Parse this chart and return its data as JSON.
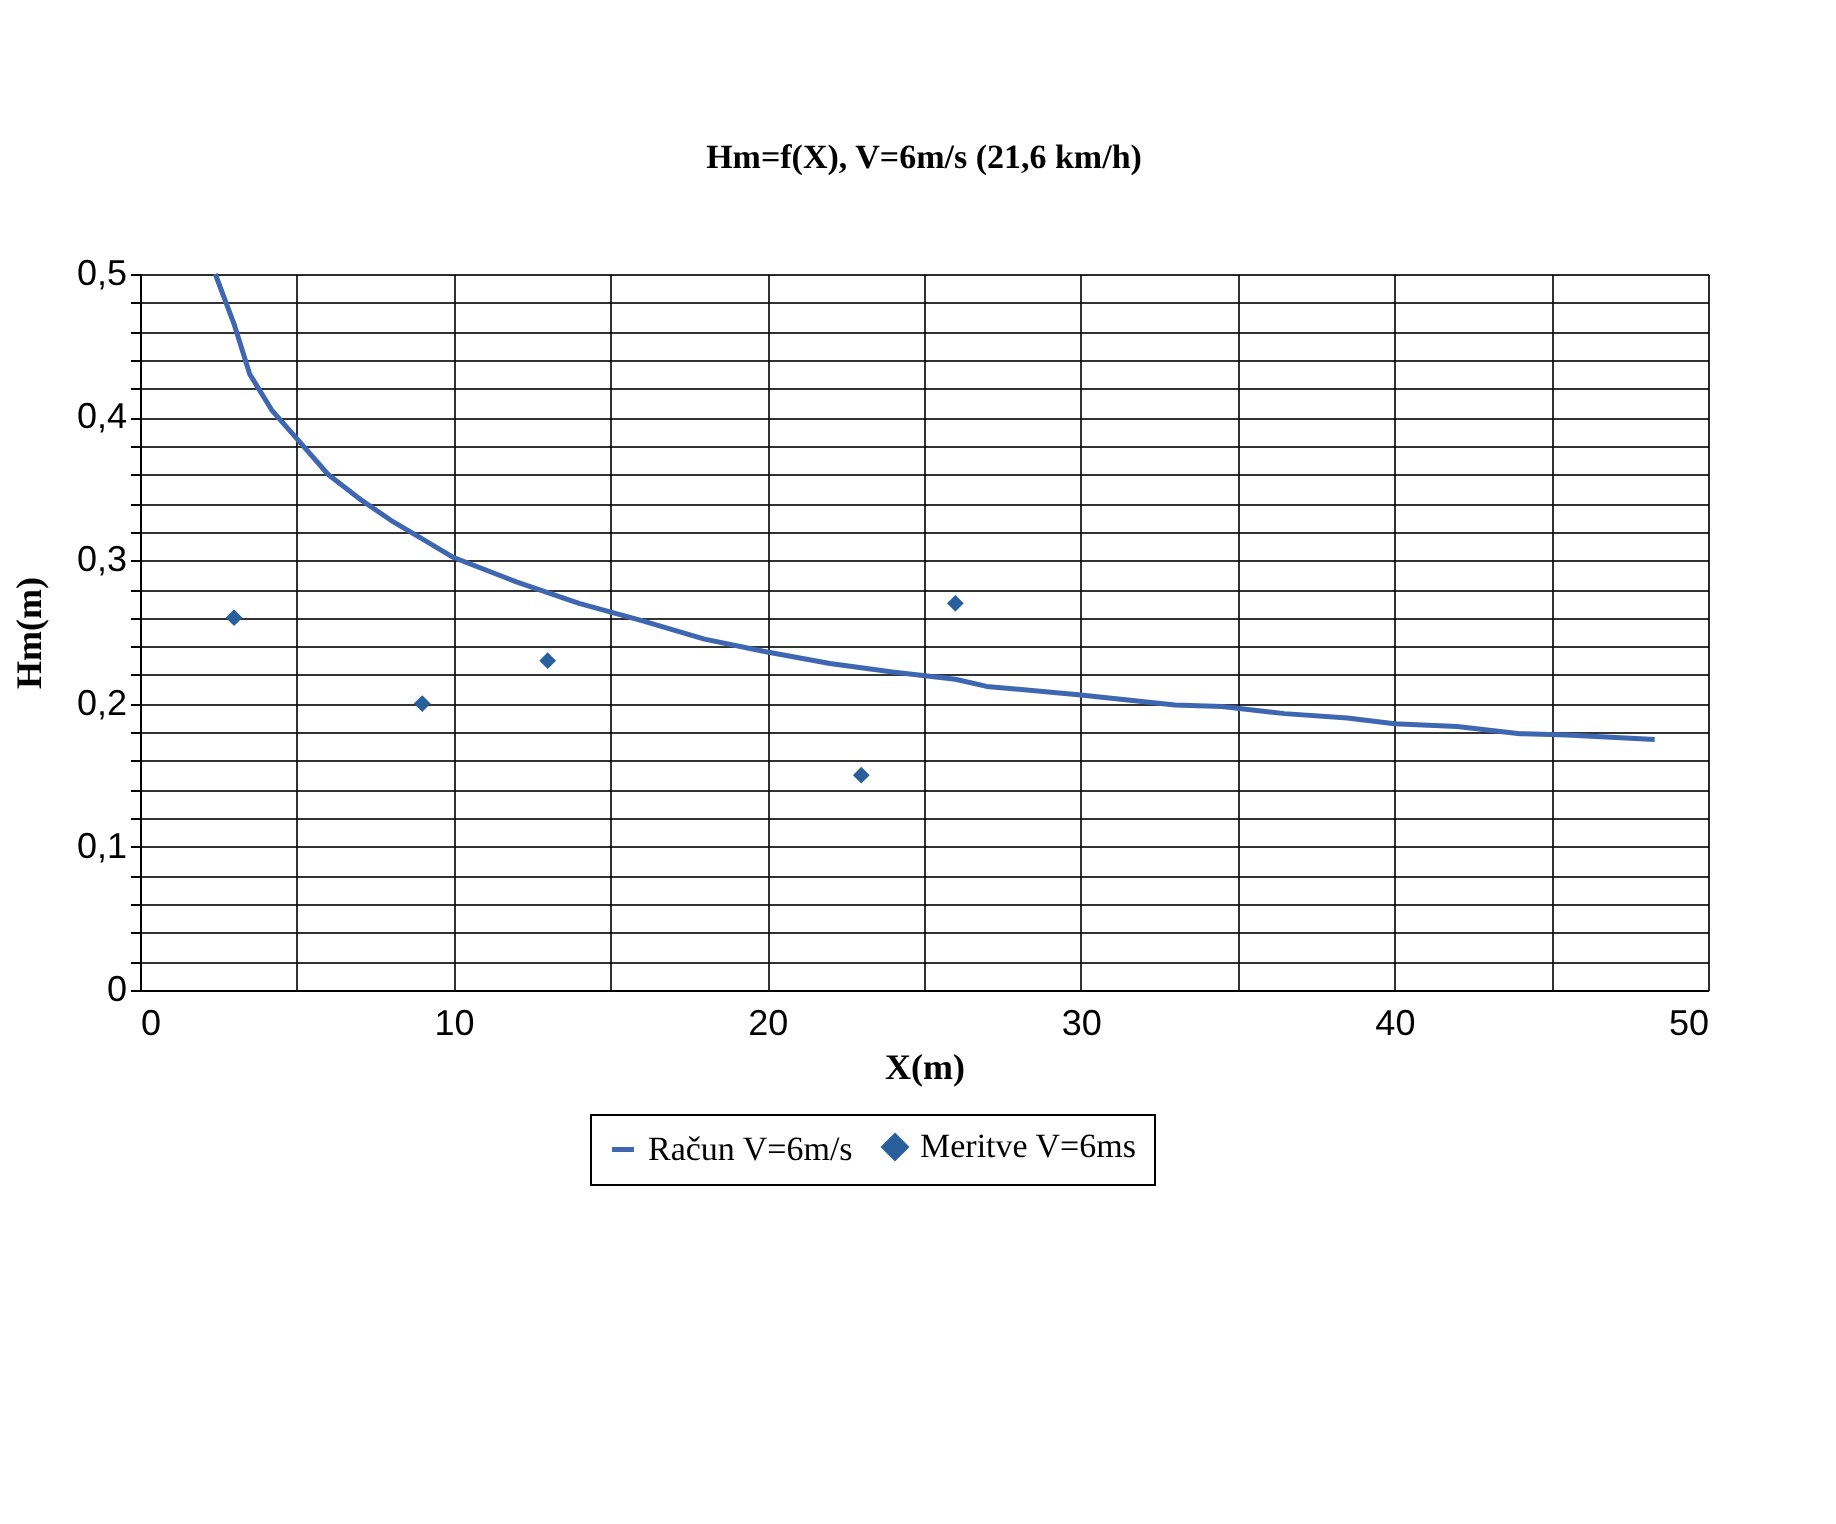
{
  "chart_data": {
    "type": "line",
    "title": "Hm=f(X), V=6m/s (21,6 km/h)",
    "xlabel": "X(m)",
    "ylabel": "Hm(m)",
    "xlim": [
      0,
      50
    ],
    "ylim": [
      0,
      0.5
    ],
    "xticks": [
      0,
      {
        "value": 5,
        "label": null
      },
      10,
      {
        "value": 15,
        "label": null
      },
      20,
      {
        "value": 25,
        "label": null
      },
      30,
      {
        "value": 35,
        "label": null
      },
      40,
      {
        "value": 45,
        "label": null
      },
      50
    ],
    "yticks": [
      {
        "value": 0,
        "label": "0"
      },
      {
        "value": 0.02,
        "label": null
      },
      {
        "value": 0.04,
        "label": null
      },
      {
        "value": 0.06,
        "label": null
      },
      {
        "value": 0.08,
        "label": null
      },
      {
        "value": 0.1,
        "label": "0,1"
      },
      {
        "value": 0.12,
        "label": null
      },
      {
        "value": 0.14,
        "label": null
      },
      {
        "value": 0.16,
        "label": null
      },
      {
        "value": 0.18,
        "label": null
      },
      {
        "value": 0.2,
        "label": "0,2"
      },
      {
        "value": 0.22,
        "label": null
      },
      {
        "value": 0.24,
        "label": null
      },
      {
        "value": 0.26,
        "label": null
      },
      {
        "value": 0.28,
        "label": null
      },
      {
        "value": 0.3,
        "label": "0,3"
      },
      {
        "value": 0.32,
        "label": null
      },
      {
        "value": 0.34,
        "label": null
      },
      {
        "value": 0.36,
        "label": null
      },
      {
        "value": 0.38,
        "label": null
      },
      {
        "value": 0.4,
        "label": "0,4"
      },
      {
        "value": 0.42,
        "label": null
      },
      {
        "value": 0.44,
        "label": null
      },
      {
        "value": 0.46,
        "label": null
      },
      {
        "value": 0.48,
        "label": null
      },
      {
        "value": 0.5,
        "label": "0,5"
      }
    ],
    "grid": true,
    "legend": "bottom",
    "series": [
      {
        "name": "Račun V=6m/s",
        "color": "#3f67b1",
        "marker": "none",
        "line_style": "solid",
        "x": [
          2.4,
          3,
          3.5,
          4.2,
          5,
          6,
          7,
          8,
          9,
          10,
          12,
          14,
          16,
          18,
          20,
          22,
          24,
          26,
          27,
          30,
          33,
          34.5,
          36.5,
          38.5,
          40,
          42,
          44,
          45.5,
          48.3
        ],
        "values": [
          0.5,
          0.465,
          0.43,
          0.405,
          0.385,
          0.36,
          0.343,
          0.328,
          0.315,
          0.302,
          0.285,
          0.27,
          0.258,
          0.245,
          0.236,
          0.228,
          0.222,
          0.217,
          0.212,
          0.206,
          0.199,
          0.198,
          0.193,
          0.19,
          0.186,
          0.184,
          0.179,
          0.178,
          0.175
        ]
      },
      {
        "name": "Meritve V=6ms",
        "type": "scatter",
        "color": "#2a5f9e",
        "marker": "diamond",
        "x": [
          3,
          9,
          13,
          23,
          26
        ],
        "values": [
          0.26,
          0.2,
          0.23,
          0.15,
          0.27
        ]
      }
    ]
  }
}
